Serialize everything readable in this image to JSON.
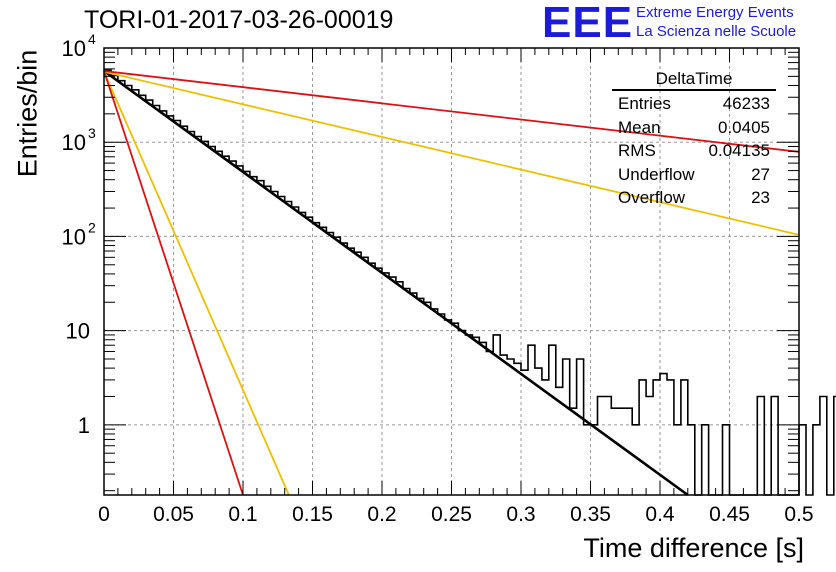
{
  "header": {
    "title": "TORI-01-2017-03-26-00019",
    "logo_mark": "EEE",
    "logo_line1": "Extreme Energy Events",
    "logo_line2": "La Scienza nelle Scuole"
  },
  "stats_box": {
    "name": "DeltaTime",
    "rows": [
      {
        "label": "Entries",
        "value": "46233"
      },
      {
        "label": "Mean",
        "value": "0.0405"
      },
      {
        "label": "RMS",
        "value": "0.04135"
      },
      {
        "label": "Underflow",
        "value": "27"
      },
      {
        "label": "Overflow",
        "value": "23"
      }
    ]
  },
  "chart_data": {
    "type": "line",
    "xlabel": "Time difference [s]",
    "ylabel": "Entries/bin",
    "xlim": [
      0,
      0.5
    ],
    "ylim": [
      0.18,
      10000
    ],
    "yscale": "log",
    "grid": true,
    "x_ticks": [
      "0",
      "0.05",
      "0.1",
      "0.15",
      "0.2",
      "0.25",
      "0.3",
      "0.35",
      "0.4",
      "0.45",
      "0.5"
    ],
    "y_ticks": [
      {
        "value": 1,
        "label": "1"
      },
      {
        "value": 10,
        "label": "10"
      },
      {
        "value": 100,
        "label": "10",
        "exp": "2"
      },
      {
        "value": 1000,
        "label": "10",
        "exp": "3"
      },
      {
        "value": 10000,
        "label": "10",
        "exp": "4"
      }
    ],
    "histogram": {
      "name": "DeltaTime",
      "bin_width": 0.005,
      "color": "#000000",
      "values": [
        5800,
        5100,
        4500,
        4000,
        3600,
        3150,
        2800,
        2450,
        2150,
        1900,
        1700,
        1480,
        1300,
        1150,
        1020,
        900,
        800,
        710,
        630,
        560,
        490,
        430,
        390,
        340,
        300,
        265,
        235,
        205,
        180,
        160,
        140,
        125,
        110,
        98,
        85,
        75,
        68,
        60,
        52,
        46,
        41,
        37,
        33,
        28,
        25,
        22,
        20,
        17,
        15,
        13,
        12,
        10,
        9,
        8.5,
        7.5,
        6,
        9,
        5.5,
        5,
        4.5,
        3.8,
        7,
        4,
        3,
        7,
        2.5,
        5,
        1.5,
        5,
        1,
        1,
        2,
        2,
        1.5,
        1.5,
        1.5,
        1,
        3,
        2,
        3,
        3.5,
        3,
        1,
        3,
        1,
        0.1,
        1,
        0.1,
        0.1,
        1,
        0.1,
        0.1,
        0.1,
        0.1,
        2,
        0.1,
        2,
        0.1,
        0.1,
        0.1,
        1,
        0.1,
        1,
        2,
        0.1,
        2,
        0.1,
        0.1,
        0.1,
        2
      ]
    },
    "fits": [
      {
        "color": "#000000",
        "x": [
          0,
          0.42
        ],
        "y": [
          5700,
          0.18
        ],
        "width": 2.6
      },
      {
        "color": "#f0c000",
        "x": [
          0,
          0.5
        ],
        "y": [
          5600,
          104
        ]
      },
      {
        "color": "#f0c000",
        "x": [
          0,
          0.133
        ],
        "y": [
          5600,
          0.18
        ]
      },
      {
        "color": "#dd1111",
        "x": [
          0,
          0.5
        ],
        "y": [
          5700,
          790
        ]
      },
      {
        "color": "#dd1111",
        "x": [
          0,
          0.1
        ],
        "y": [
          5700,
          0.18
        ]
      }
    ]
  }
}
